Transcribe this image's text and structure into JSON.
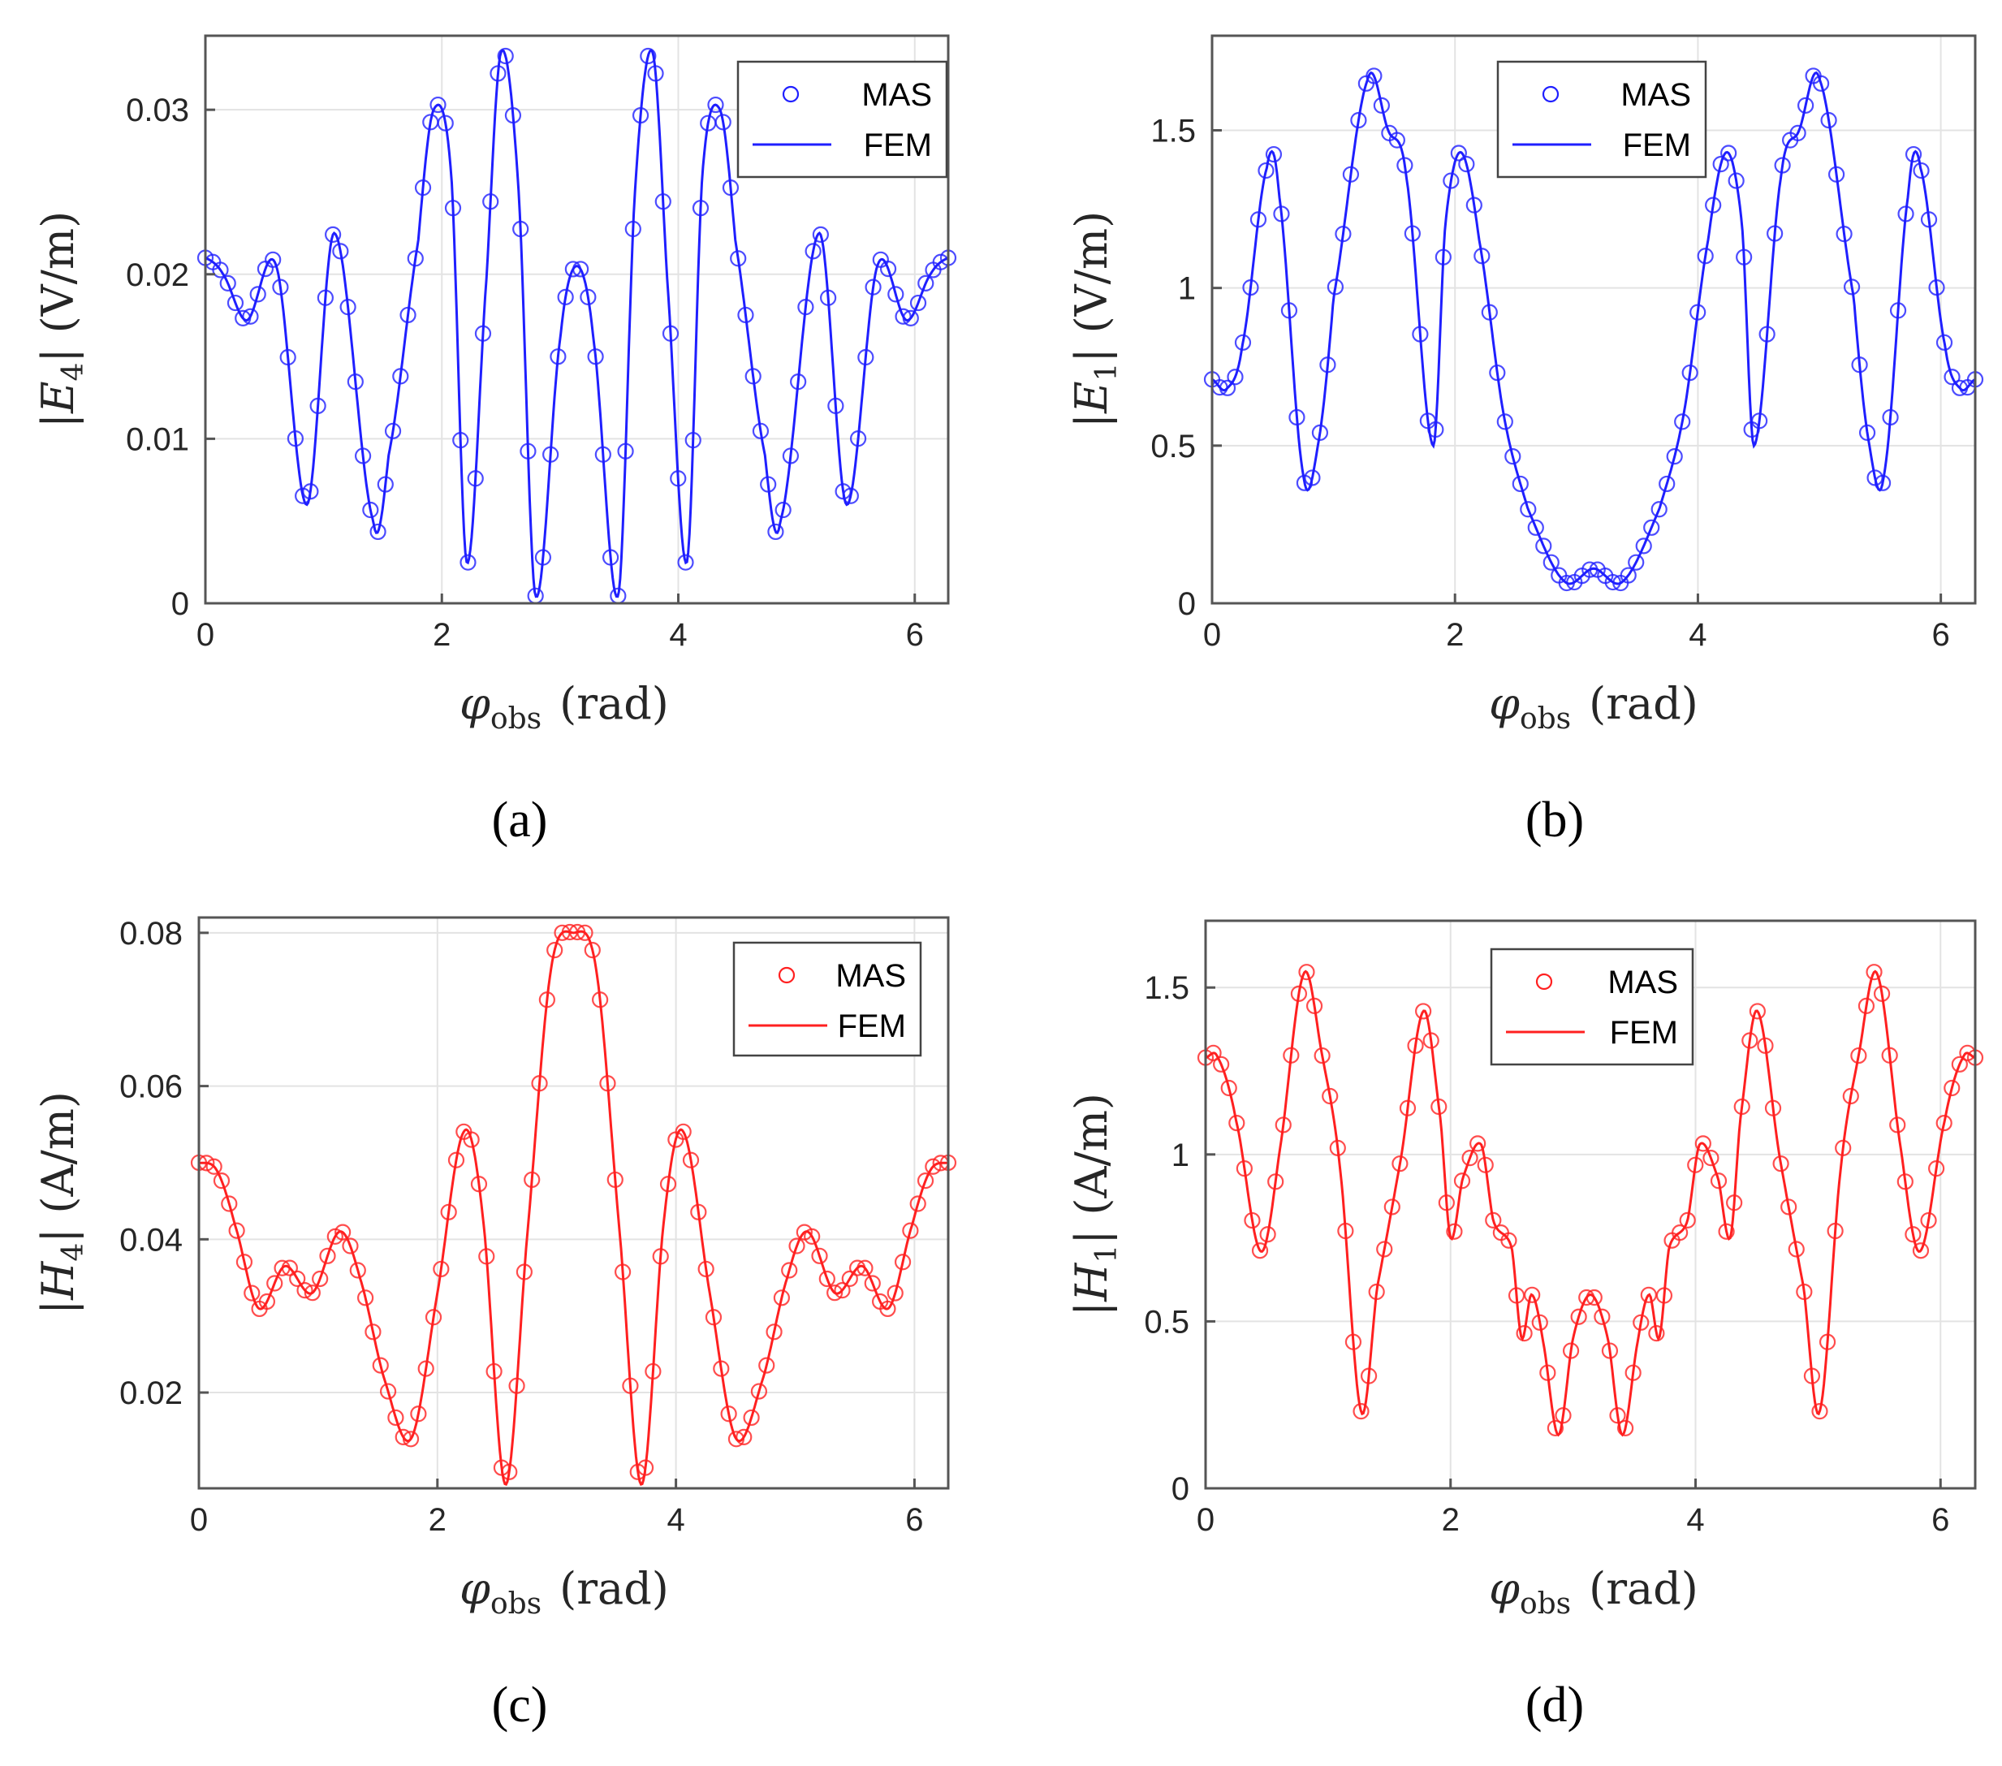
{
  "chart_data": [
    {
      "type": "line",
      "panel_label": "(a)",
      "color": "#1f1fff",
      "xlabel": {
        "var": "φ",
        "sub": "obs",
        "unit": "(rad)"
      },
      "ylabel": {
        "var": "E",
        "sub": "4",
        "unit": "(V/m)"
      },
      "xlim": [
        0,
        6.2832
      ],
      "ylim": [
        0,
        0.0345
      ],
      "xticks": [
        0,
        2,
        4,
        6
      ],
      "xtick_labels": [
        "0",
        "2",
        "4",
        "6"
      ],
      "yticks": [
        0,
        0.01,
        0.02,
        0.03
      ],
      "ytick_labels": [
        "0",
        "0.01",
        "0.02",
        "0.03"
      ],
      "grid": true,
      "legend": "top-right",
      "symmetric_about_pi": true,
      "series": [
        {
          "name": "MAS",
          "style": "circle markers",
          "samples": 100
        },
        {
          "name": "FEM",
          "style": "solid line",
          "x": [
            0,
            0.15,
            0.35,
            0.6,
            0.86,
            1.09,
            1.42,
            1.55,
            1.8,
            1.93,
            2.08,
            2.21,
            2.38,
            2.5,
            2.65,
            2.79,
            3.0,
            3.14159
          ],
          "y": [
            0.021,
            0.02,
            0.0172,
            0.0205,
            0.006,
            0.0225,
            0.005,
            0.009,
            0.022,
            0.03,
            0.026,
            0.0025,
            0.02,
            0.0335,
            0.025,
            0.0005,
            0.016,
            0.0205
          ]
        }
      ]
    },
    {
      "type": "line",
      "panel_label": "(b)",
      "color": "#1f1fff",
      "xlabel": {
        "var": "φ",
        "sub": "obs",
        "unit": "(rad)"
      },
      "ylabel": {
        "var": "E",
        "sub": "1",
        "unit": "(V/m)"
      },
      "xlim": [
        0,
        6.2832
      ],
      "ylim": [
        0,
        1.8
      ],
      "xticks": [
        0,
        2,
        4,
        6
      ],
      "xtick_labels": [
        "0",
        "2",
        "4",
        "6"
      ],
      "yticks": [
        0,
        0.5,
        1,
        1.5
      ],
      "ytick_labels": [
        "0",
        "0.5",
        "1",
        "1.5"
      ],
      "grid": true,
      "legend": "top-center",
      "symmetric_about_pi": true,
      "series": [
        {
          "name": "MAS",
          "style": "circle markers",
          "samples": 100
        },
        {
          "name": "FEM",
          "style": "solid line",
          "x": [
            0,
            0.12,
            0.25,
            0.45,
            0.55,
            0.75,
            0.88,
            1.0,
            1.28,
            1.45,
            1.6,
            1.82,
            1.92,
            2.05,
            2.2,
            2.4,
            2.6,
            2.9,
            3.14159
          ],
          "y": [
            0.71,
            0.68,
            0.82,
            1.38,
            1.3,
            0.41,
            0.52,
            0.97,
            1.66,
            1.5,
            1.35,
            0.5,
            1.2,
            1.43,
            1.15,
            0.6,
            0.3,
            0.07,
            0.11
          ]
        }
      ]
    },
    {
      "type": "line",
      "panel_label": "(c)",
      "color": "#ff2020",
      "xlabel": {
        "var": "φ",
        "sub": "obs",
        "unit": "(rad)"
      },
      "ylabel": {
        "var": "H",
        "sub": "4",
        "unit": "(A/m)"
      },
      "xlim": [
        0,
        6.2832
      ],
      "ylim": [
        0.0075,
        0.082
      ],
      "xticks": [
        0,
        2,
        4,
        6
      ],
      "xtick_labels": [
        "0",
        "2",
        "4",
        "6"
      ],
      "yticks": [
        0.02,
        0.04,
        0.06,
        0.08
      ],
      "ytick_labels": [
        "0.02",
        "0.04",
        "0.06",
        "0.08"
      ],
      "grid": true,
      "legend": "top-right",
      "symmetric_about_pi": true,
      "series": [
        {
          "name": "MAS",
          "style": "circle markers",
          "samples": 100
        },
        {
          "name": "FEM",
          "style": "solid line",
          "x": [
            0,
            0.15,
            0.3,
            0.5,
            0.72,
            0.95,
            1.18,
            1.35,
            1.55,
            1.78,
            2.0,
            2.22,
            2.38,
            2.57,
            2.75,
            2.95,
            3.14159
          ],
          "y": [
            0.05,
            0.049,
            0.042,
            0.031,
            0.0365,
            0.033,
            0.041,
            0.035,
            0.022,
            0.014,
            0.033,
            0.054,
            0.043,
            0.008,
            0.04,
            0.075,
            0.08
          ]
        }
      ]
    },
    {
      "type": "line",
      "panel_label": "(d)",
      "color": "#ff2020",
      "xlabel": {
        "var": "φ",
        "sub": "obs",
        "unit": "(rad)"
      },
      "ylabel": {
        "var": "H",
        "sub": "1",
        "unit": "(A/m)"
      },
      "xlim": [
        0,
        6.2832
      ],
      "ylim": [
        0,
        1.7
      ],
      "xticks": [
        0,
        2,
        4,
        6
      ],
      "xtick_labels": [
        "0",
        "2",
        "4",
        "6"
      ],
      "yticks": [
        0,
        0.5,
        1,
        1.5
      ],
      "ytick_labels": [
        "0",
        "0.5",
        "1",
        "1.5"
      ],
      "grid": true,
      "legend": "top-center",
      "symmetric_about_pi": true,
      "series": [
        {
          "name": "MAS",
          "style": "circle markers",
          "samples": 100
        },
        {
          "name": "FEM",
          "style": "solid line",
          "x": [
            0,
            0.1,
            0.25,
            0.45,
            0.6,
            0.8,
            0.95,
            1.1,
            1.27,
            1.4,
            1.6,
            1.78,
            1.92,
            2.0,
            2.1,
            2.25,
            2.35,
            2.5,
            2.58,
            2.66,
            2.75,
            2.88,
            3.0,
            3.14159
          ],
          "y": [
            1.29,
            1.29,
            1.1,
            0.71,
            1.0,
            1.54,
            1.3,
            0.95,
            0.23,
            0.6,
            1.0,
            1.43,
            1.1,
            0.75,
            0.93,
            1.03,
            0.8,
            0.72,
            0.45,
            0.58,
            0.45,
            0.16,
            0.45,
            0.58
          ]
        }
      ]
    }
  ]
}
